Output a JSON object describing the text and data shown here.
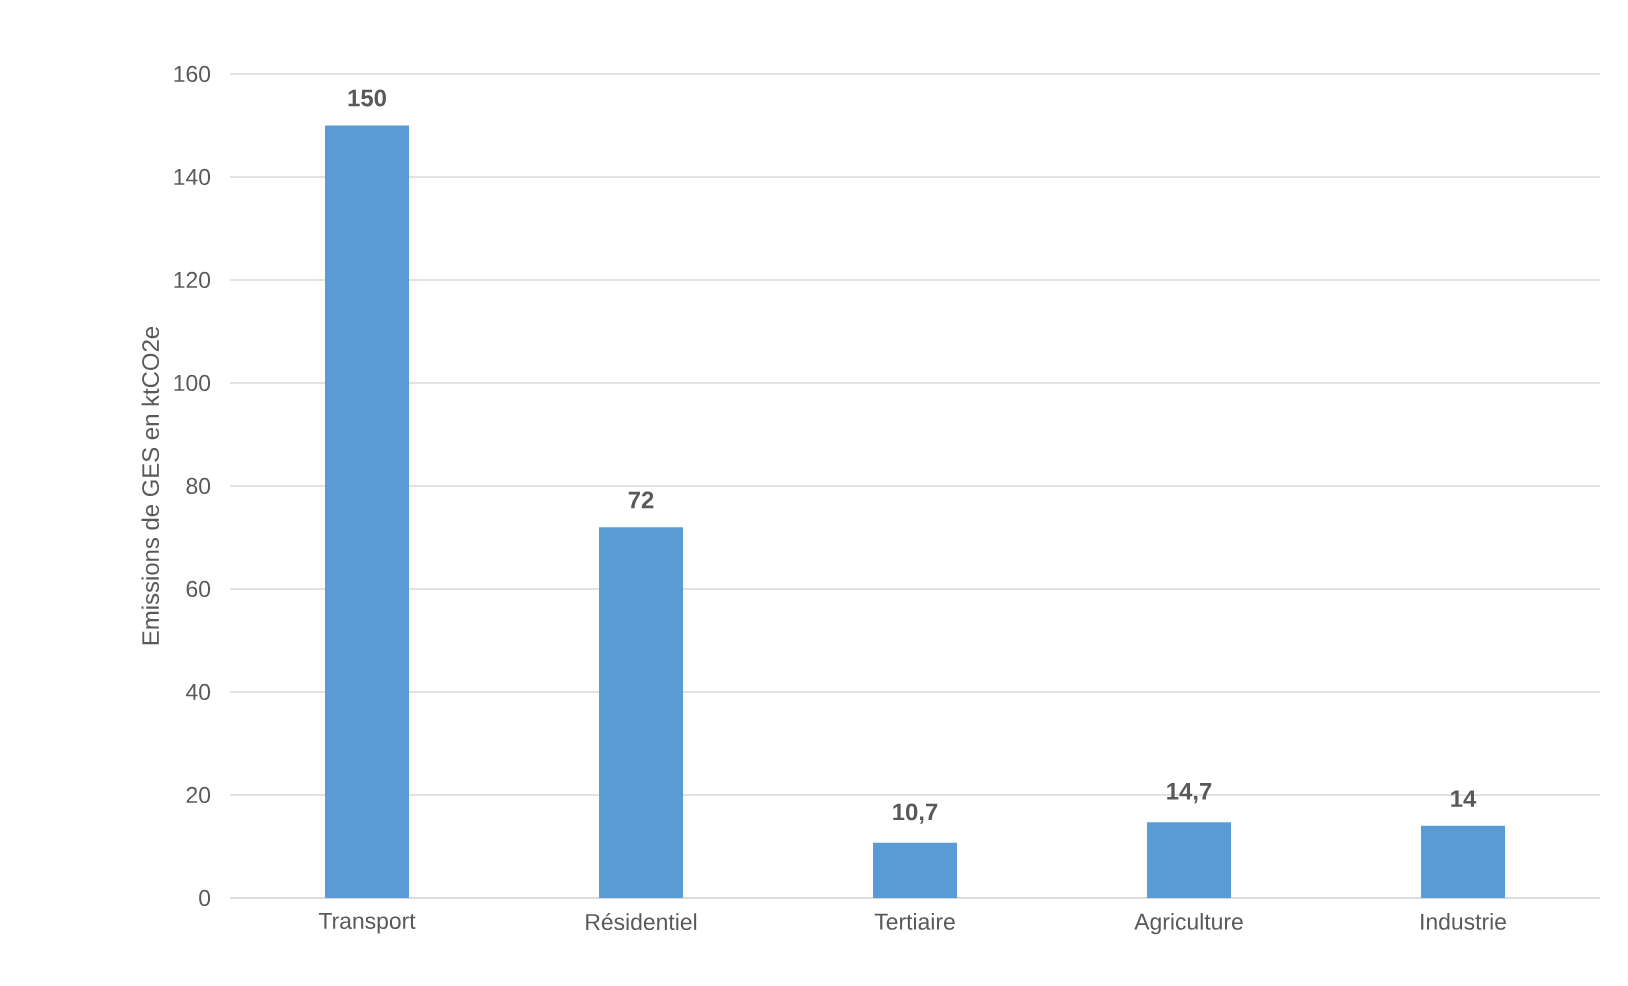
{
  "chart_data": {
    "type": "bar",
    "ylabel": "Emissions de GES en ktCO2e",
    "categories": [
      "Transport",
      "Résidentiel",
      "Tertiaire",
      "Agriculture",
      "Industrie"
    ],
    "values": [
      150,
      72,
      10.7,
      14.7,
      14
    ],
    "value_labels": [
      "150",
      "72",
      "10,7",
      "14,7",
      "14"
    ],
    "color": "#5b9bd5",
    "ylim": [
      0,
      160
    ],
    "yticks": [
      0,
      20,
      40,
      60,
      80,
      100,
      120,
      140,
      160
    ],
    "grid": "y"
  }
}
